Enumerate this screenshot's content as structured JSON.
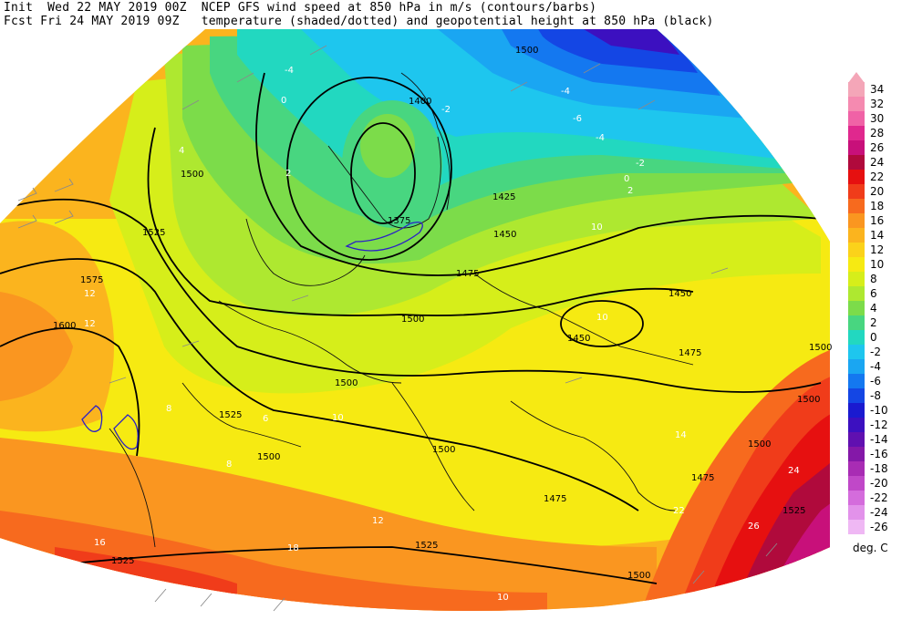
{
  "header": {
    "line1": "Init  Wed 22 MAY 2019 00Z  NCEP GFS wind speed at 850 hPa in m/s (contours/barbs)",
    "line2": "Fcst Fri 24 MAY 2019 09Z   temperature (shaded/dotted) and geopotential height at 850 hPa (black)"
  },
  "legend": {
    "units": "deg. C",
    "entries": [
      {
        "label": "34",
        "color": "#f4a6b8"
      },
      {
        "label": "32",
        "color": "#f58ab0"
      },
      {
        "label": "30",
        "color": "#f062a6"
      },
      {
        "label": "28",
        "color": "#e0288e"
      },
      {
        "label": "26",
        "color": "#c8107a"
      },
      {
        "label": "24",
        "color": "#b00a3c"
      },
      {
        "label": "22",
        "color": "#e61010"
      },
      {
        "label": "20",
        "color": "#f03c1a"
      },
      {
        "label": "18",
        "color": "#f76a1e"
      },
      {
        "label": "16",
        "color": "#fa9620"
      },
      {
        "label": "14",
        "color": "#fbb41e"
      },
      {
        "label": "12",
        "color": "#fbd21a"
      },
      {
        "label": "10",
        "color": "#f6ea12"
      },
      {
        "label": "8",
        "color": "#d6ee1a"
      },
      {
        "label": "6",
        "color": "#aee830"
      },
      {
        "label": "4",
        "color": "#7cdc4a"
      },
      {
        "label": "2",
        "color": "#48d680"
      },
      {
        "label": "0",
        "color": "#22d8c0"
      },
      {
        "label": "-2",
        "color": "#1ec6ee"
      },
      {
        "label": "-4",
        "color": "#1aa6f2"
      },
      {
        "label": "-6",
        "color": "#1478f0"
      },
      {
        "label": "-8",
        "color": "#1446e4"
      },
      {
        "label": "-10",
        "color": "#1a1ad0"
      },
      {
        "label": "-12",
        "color": "#3c10c0"
      },
      {
        "label": "-14",
        "color": "#6010b0"
      },
      {
        "label": "-16",
        "color": "#8418a8"
      },
      {
        "label": "-18",
        "color": "#a82cb4"
      },
      {
        "label": "-20",
        "color": "#c048c8"
      },
      {
        "label": "-22",
        "color": "#d46cdc"
      },
      {
        "label": "-24",
        "color": "#e292ea"
      },
      {
        "label": "-26",
        "color": "#efb8f4"
      }
    ]
  },
  "height_labels": [
    "1400",
    "1425",
    "1375",
    "1450",
    "1475",
    "1450",
    "1450",
    "1475",
    "1500",
    "1500",
    "1500",
    "1525",
    "1575",
    "1600",
    "1500",
    "1525",
    "1500",
    "1500",
    "1500",
    "1475",
    "1475",
    "1500",
    "1500",
    "1525",
    "1525",
    "1525",
    "1500"
  ],
  "temp_labels": [
    "-4",
    "0",
    "2",
    "4",
    "-2",
    "-4",
    "-6",
    "-4",
    "-2",
    "0",
    "2",
    "10",
    "10",
    "12",
    "12",
    "10",
    "8",
    "6",
    "8",
    "10",
    "12",
    "16",
    "14",
    "18",
    "22",
    "24",
    "26"
  ]
}
